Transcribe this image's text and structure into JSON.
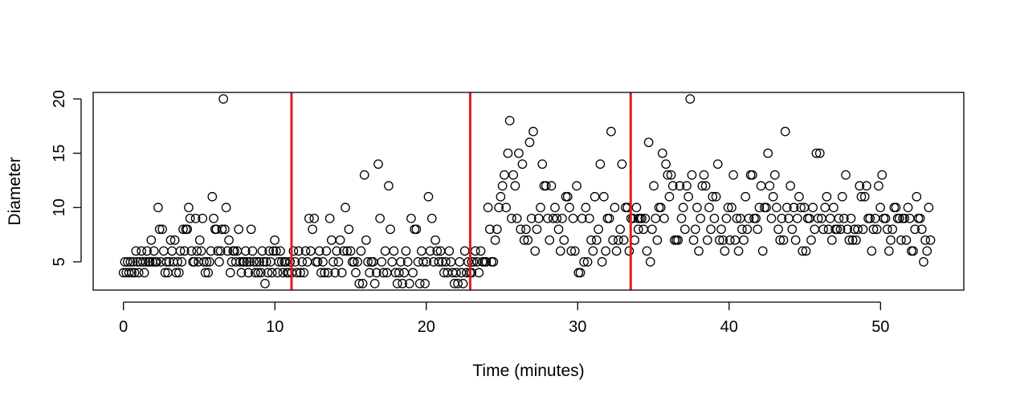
{
  "chart_data": {
    "type": "scatter",
    "xlabel": "Time (minutes)",
    "ylabel": "Diameter",
    "xlim": [
      -2,
      55.5
    ],
    "ylim": [
      2.4,
      20.6
    ],
    "xticks": [
      0,
      10,
      20,
      30,
      40,
      50
    ],
    "yticks": [
      5,
      10,
      15,
      20
    ],
    "grid": false,
    "marker": "open-circle",
    "point_color": "#000000",
    "vertical_lines": {
      "color": "#e41a1c",
      "x": [
        11.1,
        22.9,
        33.5
      ]
    },
    "series": [
      {
        "segments": [
          {
            "start": 0.0,
            "end": 11.0,
            "y": [
              4,
              5,
              4,
              5,
              4,
              5,
              4,
              5,
              4,
              6,
              5,
              4,
              5,
              6,
              5,
              4,
              5,
              6,
              5,
              5,
              7,
              5,
              6,
              5,
              5,
              10,
              8,
              5,
              8,
              6,
              4,
              5,
              4,
              5,
              7,
              6,
              5,
              7,
              4,
              5,
              4,
              6,
              5,
              8,
              6,
              8,
              8,
              10,
              9,
              6,
              5,
              5,
              9,
              6,
              5,
              7,
              6,
              9,
              5,
              4,
              5,
              4,
              5,
              6,
              11,
              9,
              8,
              8,
              6,
              5,
              6,
              8,
              20,
              8,
              10,
              6,
              7,
              4,
              5,
              6,
              6,
              5,
              6,
              8,
              5,
              4,
              5,
              5,
              6,
              5,
              4,
              5,
              8,
              6,
              5,
              4,
              5,
              4,
              5,
              4,
              6,
              5,
              3,
              5,
              4,
              6,
              5,
              4,
              6,
              7,
              6,
              4,
              5,
              6,
              5,
              4,
              5,
              5,
              4,
              4,
              5
            ]
          },
          {
            "start": 11.0,
            "end": 23.0,
            "y": [
              5,
              4,
              6,
              5,
              4,
              6,
              4,
              5,
              4,
              6,
              5,
              9,
              6,
              8,
              9,
              5,
              5,
              6,
              4,
              5,
              4,
              6,
              4,
              9,
              7,
              5,
              4,
              6,
              5,
              7,
              4,
              6,
              10,
              6,
              8,
              6,
              5,
              5,
              4,
              5,
              3,
              6,
              3,
              13,
              7,
              5,
              4,
              5,
              5,
              3,
              4,
              14,
              9,
              5,
              4,
              6,
              4,
              12,
              8,
              5,
              6,
              4,
              3,
              4,
              5,
              3,
              4,
              6,
              5,
              3,
              9,
              4,
              8,
              8,
              5,
              3,
              6,
              5,
              3,
              5,
              11,
              6,
              9,
              5,
              7,
              6,
              5,
              6,
              5,
              4,
              5,
              4,
              6,
              5,
              4,
              3,
              4,
              3,
              5,
              4,
              3,
              6,
              4,
              5,
              4,
              5
            ]
          },
          {
            "start": 23.0,
            "end": 34.0,
            "y": [
              4,
              5,
              6,
              5,
              4,
              6,
              5,
              5,
              5,
              10,
              8,
              5,
              5,
              7,
              8,
              10,
              11,
              12,
              13,
              10,
              15,
              18,
              9,
              13,
              12,
              9,
              15,
              8,
              14,
              7,
              8,
              7,
              16,
              9,
              17,
              6,
              8,
              9,
              10,
              14,
              12,
              12,
              9,
              7,
              12,
              9,
              10,
              9,
              8,
              6,
              9,
              7,
              11,
              11,
              10,
              6,
              9,
              6,
              12,
              4,
              4,
              9,
              5,
              10,
              5,
              9,
              7,
              6,
              11,
              7,
              8,
              14,
              5,
              11,
              6,
              9,
              9,
              17,
              7,
              10,
              6,
              7,
              8,
              14,
              7,
              10,
              10,
              6,
              9,
              9,
              7,
              10,
              9
            ]
          },
          {
            "start": 34.0,
            "end": 53.3,
            "y": [
              8,
              9,
              9,
              8,
              9,
              6,
              16,
              5,
              8,
              12,
              9,
              7,
              10,
              10,
              15,
              9,
              14,
              13,
              11,
              13,
              12,
              7,
              7,
              7,
              12,
              9,
              10,
              8,
              12,
              11,
              20,
              13,
              7,
              8,
              10,
              6,
              9,
              12,
              13,
              12,
              7,
              10,
              8,
              11,
              9,
              11,
              14,
              7,
              8,
              7,
              6,
              9,
              10,
              7,
              10,
              13,
              7,
              9,
              6,
              9,
              8,
              7,
              11,
              8,
              9,
              13,
              13,
              9,
              9,
              8,
              10,
              12,
              6,
              10,
              10,
              15,
              12,
              9,
              11,
              13,
              10,
              8,
              7,
              9,
              7,
              17,
              10,
              9,
              12,
              8,
              10,
              7,
              9,
              11,
              10,
              6,
              10,
              6,
              9,
              9,
              7,
              10,
              8,
              15,
              9,
              15,
              9,
              8,
              10,
              11,
              8,
              9,
              7,
              10,
              8,
              8,
              9,
              8,
              11,
              9,
              13,
              8,
              7,
              9,
              7,
              8,
              7,
              8,
              12,
              11,
              8,
              11,
              12,
              9,
              9,
              6,
              8,
              9,
              8,
              12,
              10,
              13,
              9,
              9,
              8,
              6,
              7,
              8,
              10,
              10,
              9,
              9,
              7,
              9,
              9,
              7,
              10,
              9,
              6,
              6,
              8,
              11,
              9,
              9,
              8,
              5,
              7,
              6,
              10,
              7
            ]
          }
        ]
      }
    ]
  }
}
